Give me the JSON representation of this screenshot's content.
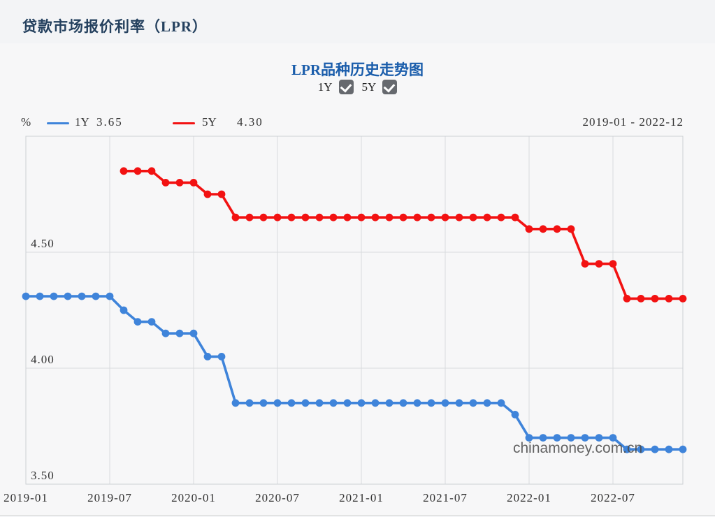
{
  "page": {
    "title": "贷款市场报价利率（LPR）"
  },
  "chart": {
    "title": "LPR品种历史走势图",
    "checkboxes": [
      {
        "label": "1Y",
        "checked": true,
        "icon": "check-icon"
      },
      {
        "label": "5Y",
        "checked": true,
        "icon": "check-icon"
      }
    ],
    "unit": "%",
    "legend": [
      {
        "name": "1Y",
        "latest_value": "3.65",
        "color": "#3f84da"
      },
      {
        "name": "5Y",
        "latest_value": "4.30",
        "color": "#f21212"
      }
    ],
    "date_range": "2019-01 - 2022-12",
    "watermark": "chinamoney.com.cn"
  },
  "chart_data": {
    "type": "line",
    "title": "LPR品种历史走势图",
    "x_unit": "month",
    "x_start": "2019-01",
    "x_end": "2022-12",
    "xticks": [
      "2019-01",
      "2019-07",
      "2020-01",
      "2020-07",
      "2021-01",
      "2021-07",
      "2022-01",
      "2022-07"
    ],
    "yticks": [
      3.5,
      4.0,
      4.5
    ],
    "ylim": [
      3.5,
      5.0
    ],
    "ylabel": "%",
    "grid": true,
    "legend_position": "top-left",
    "series": [
      {
        "name": "1Y",
        "color": "#3f84da",
        "start_month_index": 0,
        "values": [
          4.31,
          4.31,
          4.31,
          4.31,
          4.31,
          4.31,
          4.31,
          4.25,
          4.2,
          4.2,
          4.15,
          4.15,
          4.15,
          4.05,
          4.05,
          3.85,
          3.85,
          3.85,
          3.85,
          3.85,
          3.85,
          3.85,
          3.85,
          3.85,
          3.85,
          3.85,
          3.85,
          3.85,
          3.85,
          3.85,
          3.85,
          3.85,
          3.85,
          3.85,
          3.85,
          3.8,
          3.7,
          3.7,
          3.7,
          3.7,
          3.7,
          3.7,
          3.7,
          3.65,
          3.65,
          3.65,
          3.65,
          3.65
        ]
      },
      {
        "name": "5Y",
        "color": "#f21212",
        "start_month_index": 7,
        "values": [
          4.85,
          4.85,
          4.85,
          4.8,
          4.8,
          4.8,
          4.75,
          4.75,
          4.65,
          4.65,
          4.65,
          4.65,
          4.65,
          4.65,
          4.65,
          4.65,
          4.65,
          4.65,
          4.65,
          4.65,
          4.65,
          4.65,
          4.65,
          4.65,
          4.65,
          4.65,
          4.65,
          4.65,
          4.65,
          4.6,
          4.6,
          4.6,
          4.6,
          4.45,
          4.45,
          4.45,
          4.3,
          4.3,
          4.3,
          4.3,
          4.3
        ]
      }
    ]
  }
}
